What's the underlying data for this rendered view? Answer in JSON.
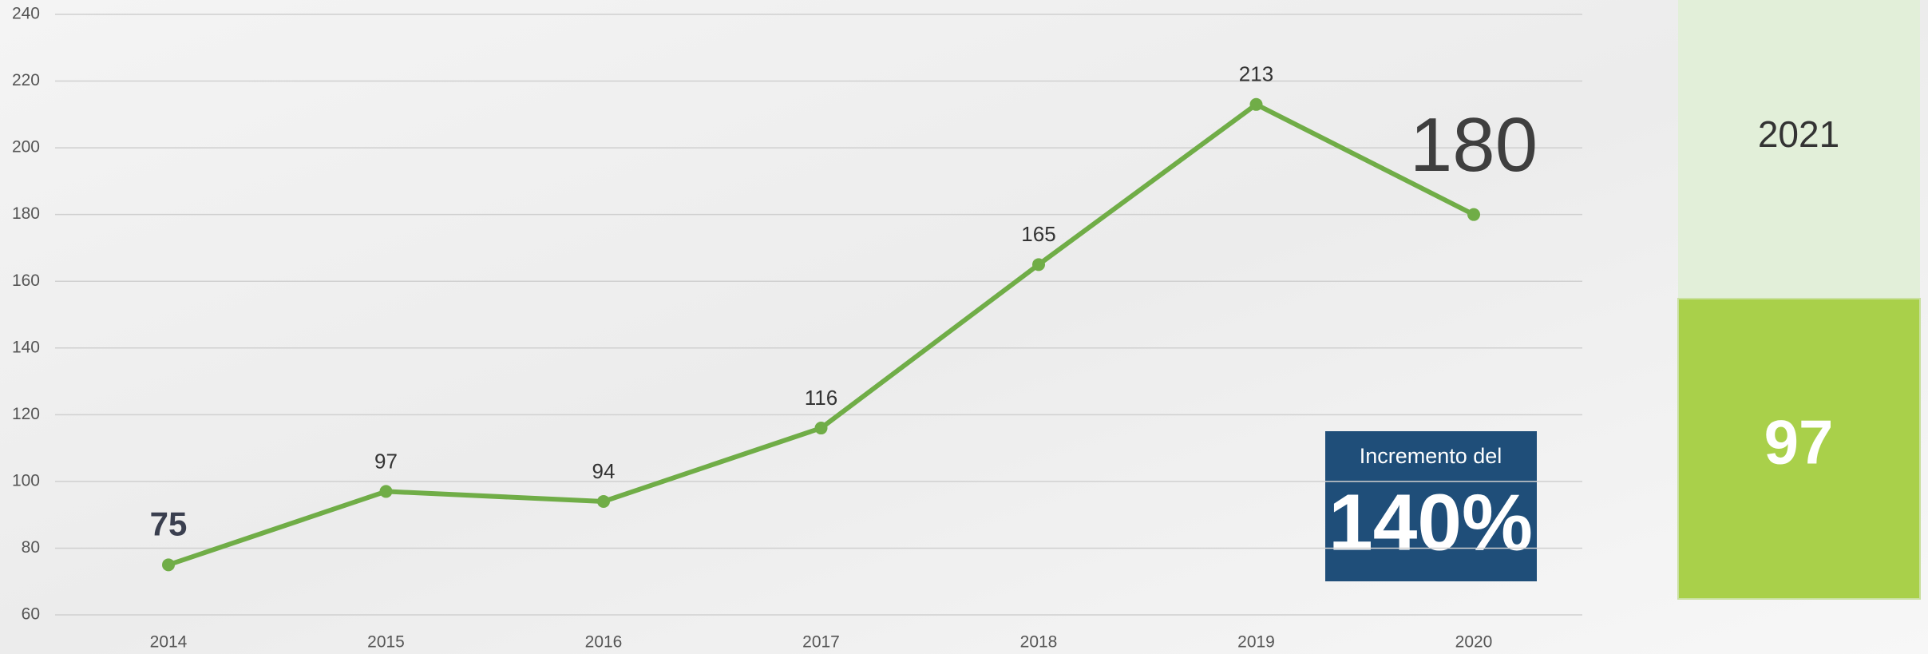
{
  "chart_data": {
    "type": "line",
    "categories": [
      "2014",
      "2015",
      "2016",
      "2017",
      "2018",
      "2019",
      "2020"
    ],
    "values": [
      75,
      97,
      94,
      116,
      165,
      213,
      180
    ],
    "color": "#70ad47",
    "ylim": [
      60,
      240
    ],
    "yticks": [
      60,
      80,
      100,
      120,
      140,
      160,
      180,
      200,
      220,
      240
    ],
    "grid": true,
    "annotation": {
      "text": "Incremento del",
      "value": "140%"
    },
    "side_panel": {
      "year": "2021",
      "value": "97"
    }
  }
}
